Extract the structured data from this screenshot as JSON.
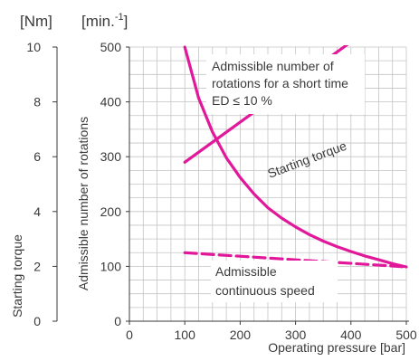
{
  "chart_data": {
    "type": "line",
    "xlabel": "Operating pressure [bar]",
    "xlim": [
      0,
      500
    ],
    "xticks": [
      "0",
      "100",
      "200",
      "300",
      "400",
      "500"
    ],
    "y_rotations": {
      "label": "Admissible number of rotations",
      "unit": "[min.",
      "unit_sup": "-1",
      "unit_close": "]",
      "lim": [
        0,
        500
      ],
      "ticks": [
        "0",
        "100",
        "200",
        "300",
        "400",
        "500"
      ]
    },
    "y_torque": {
      "label": "Starting torque",
      "unit": "[Nm]",
      "lim": [
        0,
        10
      ],
      "ticks": [
        "0",
        "2",
        "4",
        "6",
        "8",
        "10"
      ]
    },
    "grid": true,
    "line_color": "#e2189b",
    "series": [
      {
        "name": "Starting torque",
        "axis": "torque",
        "style": "solid",
        "x": [
          100,
          500
        ],
        "y": [
          5.8,
          11.65
        ]
      },
      {
        "name": "Admissible number of rotations for a short time ED ≤ 10 %",
        "axis": "rotations",
        "style": "solid",
        "x": [
          100,
          125,
          150,
          175,
          200,
          225,
          250,
          275,
          300,
          325,
          350,
          375,
          400,
          425,
          450,
          475,
          500
        ],
        "y": [
          500,
          407,
          345,
          298,
          262,
          232,
          207,
          188,
          172,
          158,
          146,
          136,
          127,
          119,
          112,
          105,
          99
        ]
      },
      {
        "name": "Admissible continuous speed",
        "axis": "rotations",
        "style": "dashed",
        "x": [
          100,
          500
        ],
        "y": [
          125,
          99
        ]
      }
    ],
    "annotations": {
      "short_time": [
        "Admissible number of",
        "rotations for a short time",
        "ED ≤ 10 %"
      ],
      "starting_torque": "Starting torque",
      "continuous": [
        "Admissible",
        "continuous speed"
      ]
    }
  }
}
